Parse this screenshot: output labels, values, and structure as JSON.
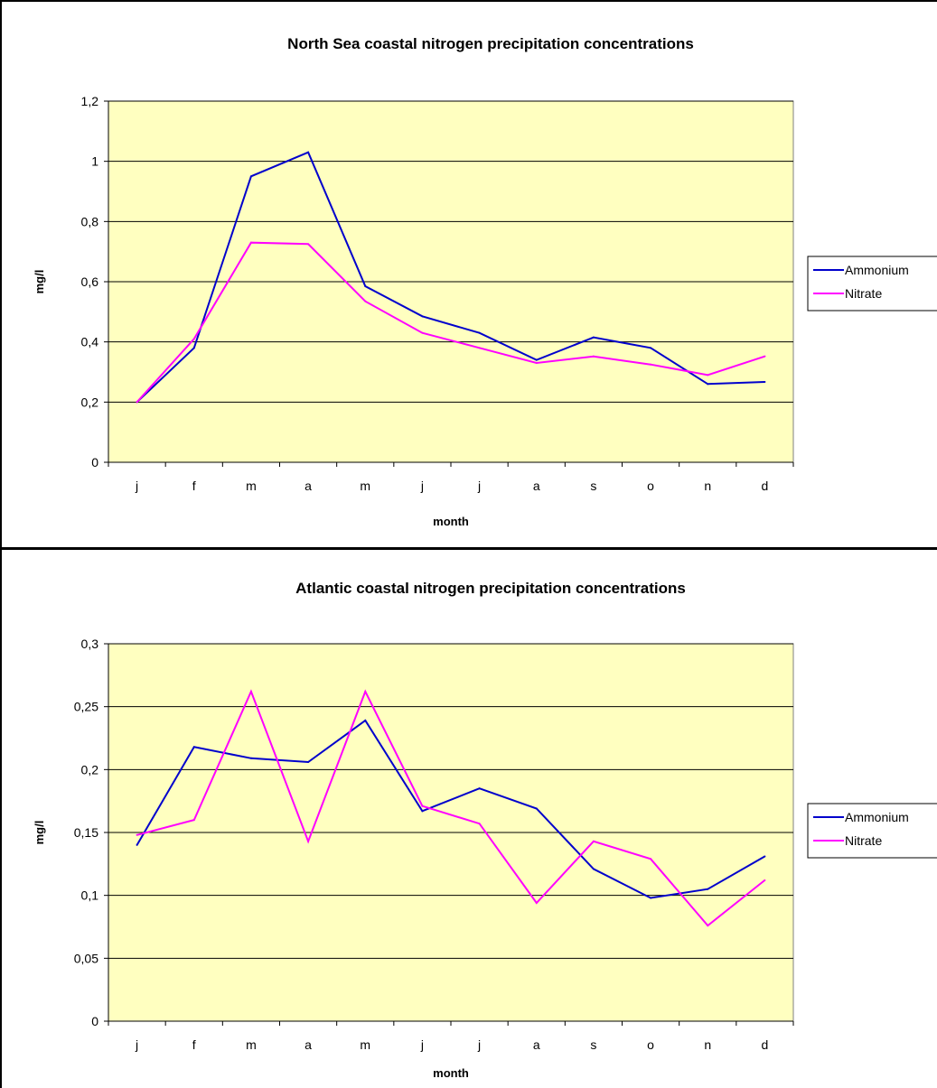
{
  "chart_data": [
    {
      "type": "line",
      "title": "North Sea coastal nitrogen precipitation concentrations",
      "xlabel": "month",
      "ylabel": "mg/l",
      "categories": [
        "j",
        "f",
        "m",
        "a",
        "m",
        "j",
        "j",
        "a",
        "s",
        "o",
        "n",
        "d"
      ],
      "yticks": [
        "0",
        "0,2",
        "0,4",
        "0,6",
        "0,8",
        "1",
        "1,2"
      ],
      "ylim": [
        0,
        1.2
      ],
      "grid": true,
      "legend_position": "right",
      "plot_background": "#ffffc0",
      "series": [
        {
          "name": "Ammonium",
          "color": "#0000cc",
          "values": [
            0.2,
            0.38,
            0.95,
            1.03,
            0.585,
            0.485,
            0.43,
            0.34,
            0.415,
            0.38,
            0.26,
            0.267
          ]
        },
        {
          "name": "Nitrate",
          "color": "#ff00ff",
          "values": [
            0.2,
            0.41,
            0.73,
            0.725,
            0.535,
            0.43,
            0.38,
            0.33,
            0.352,
            0.325,
            0.29,
            0.352
          ]
        }
      ]
    },
    {
      "type": "line",
      "title": "Atlantic coastal nitrogen precipitation concentrations",
      "xlabel": "month",
      "ylabel": "mg/l",
      "categories": [
        "j",
        "f",
        "m",
        "a",
        "m",
        "j",
        "j",
        "a",
        "s",
        "o",
        "n",
        "d"
      ],
      "yticks": [
        "0",
        "0,05",
        "0,1",
        "0,15",
        "0,2",
        "0,25",
        "0,3"
      ],
      "ylim": [
        0,
        0.3
      ],
      "grid": true,
      "legend_position": "right",
      "plot_background": "#ffffc0",
      "series": [
        {
          "name": "Ammonium",
          "color": "#0000cc",
          "values": [
            0.14,
            0.218,
            0.209,
            0.206,
            0.239,
            0.167,
            0.185,
            0.169,
            0.121,
            0.098,
            0.105,
            0.131
          ]
        },
        {
          "name": "Nitrate",
          "color": "#ff00ff",
          "values": [
            0.148,
            0.16,
            0.262,
            0.143,
            0.262,
            0.171,
            0.157,
            0.094,
            0.143,
            0.129,
            0.076,
            0.112
          ]
        }
      ]
    }
  ]
}
